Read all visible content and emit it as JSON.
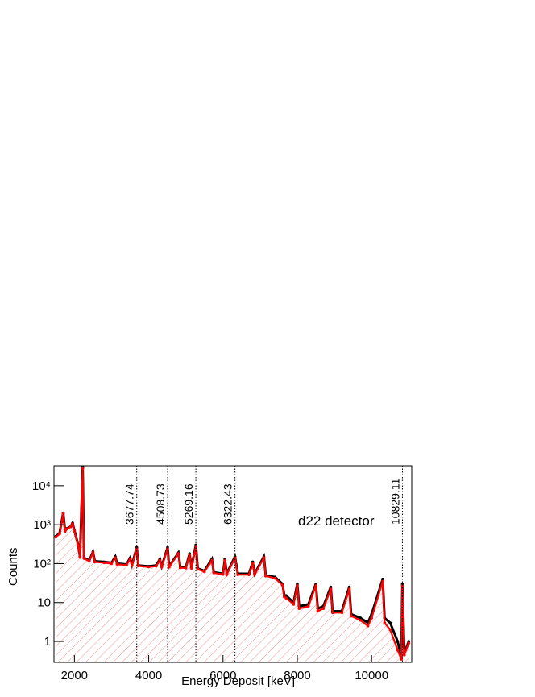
{
  "chart_data": {
    "type": "line",
    "xlabel": "Energy Deposit [keV]",
    "ylabel": "Counts",
    "annotation": "d22 detector",
    "peaks": [
      3677.74,
      4508.73,
      5269.16,
      6322.43,
      10829.11
    ],
    "log_y": true,
    "xlim": [
      1450,
      11080
    ],
    "xticks": [
      2000,
      4000,
      6000,
      8000,
      10000
    ],
    "ylim": [
      0.29,
      32700
    ],
    "yticks": [
      1,
      10,
      {
        "value": 100,
        "label": "10²"
      },
      {
        "value": 1000,
        "label": "10³"
      },
      {
        "value": 10000,
        "label": "10⁴"
      }
    ],
    "hatch_color": "#e8413c",
    "x": [
      1500,
      1600,
      1700,
      1750,
      1800,
      1900,
      1950,
      2000,
      2100,
      2150,
      2223,
      2260,
      2400,
      2500,
      2550,
      2800,
      3000,
      3100,
      3150,
      3400,
      3500,
      3550,
      3677,
      3720,
      4000,
      4200,
      4300,
      4350,
      4508,
      4550,
      4800,
      4850,
      5000,
      5100,
      5150,
      5269,
      5320,
      5500,
      5700,
      5750,
      6000,
      6050,
      6100,
      6322,
      6400,
      6700,
      6800,
      6850,
      7100,
      7150,
      7400,
      7600,
      7650,
      7700,
      7900,
      8000,
      8050,
      8300,
      8500,
      8550,
      8700,
      8900,
      8950,
      9200,
      9400,
      9450,
      9700,
      9900,
      10000,
      10300,
      10350,
      10500,
      10700,
      10800,
      10829,
      10880,
      11000
    ],
    "series": [
      {
        "color": "#000000",
        "values": [
          500,
          600,
          2000,
          700,
          800,
          900,
          1100,
          700,
          300,
          150,
          30000,
          140,
          120,
          200,
          115,
          110,
          105,
          150,
          100,
          95,
          140,
          92,
          260,
          90,
          85,
          90,
          130,
          85,
          260,
          85,
          190,
          80,
          80,
          180,
          80,
          300,
          75,
          65,
          130,
          60,
          55,
          130,
          55,
          150,
          55,
          55,
          110,
          55,
          150,
          50,
          45,
          30,
          15,
          15,
          10,
          30,
          8,
          9,
          30,
          7,
          8,
          25,
          6,
          6,
          25,
          5,
          4,
          3,
          5,
          40,
          4,
          3,
          1,
          0.4,
          30,
          0.5,
          1
        ]
      },
      {
        "color": "#ff0000",
        "values": [
          480,
          580,
          1900,
          680,
          780,
          880,
          1050,
          680,
          290,
          145,
          28000,
          135,
          115,
          190,
          110,
          105,
          100,
          140,
          96,
          92,
          130,
          89,
          240,
          87,
          82,
          86,
          120,
          82,
          240,
          82,
          180,
          78,
          77,
          170,
          76,
          280,
          72,
          62,
          120,
          58,
          53,
          120,
          52,
          140,
          52,
          52,
          100,
          52,
          140,
          48,
          42,
          28,
          14,
          13,
          9,
          27,
          7,
          8,
          27,
          6,
          7,
          22,
          5.5,
          5.5,
          22,
          4.5,
          3.5,
          2.5,
          4,
          35,
          3,
          2,
          0.6,
          0.35,
          27,
          0.45,
          0.9
        ]
      }
    ]
  }
}
